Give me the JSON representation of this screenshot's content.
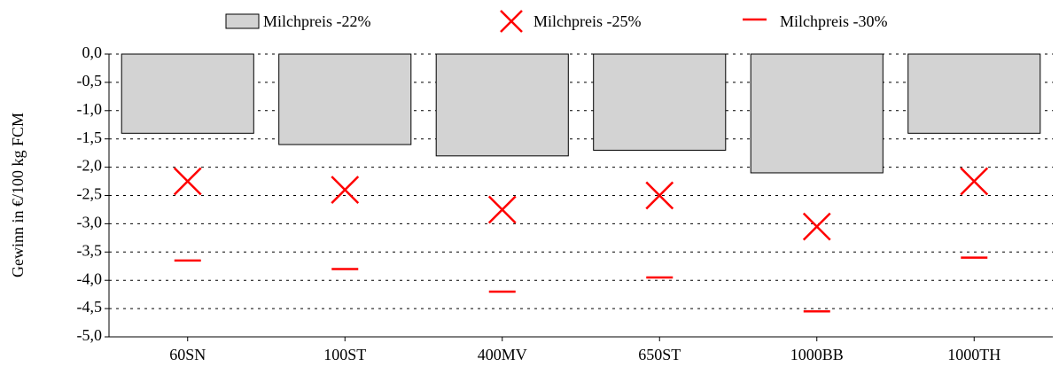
{
  "chart_data": {
    "type": "bar",
    "y_label": "Gewinn in €/100 kg FCM",
    "categories": [
      "60SN",
      "100ST",
      "400MV",
      "650ST",
      "1000BB",
      "1000TH"
    ],
    "series": [
      {
        "name": "Milchpreis -22%",
        "color": "#d3d3d3",
        "marker": "bar",
        "values": [
          -1.4,
          -1.6,
          -1.8,
          -1.7,
          -2.1,
          -1.4
        ]
      },
      {
        "name": "Milchpreis -25%",
        "color": "#ff0000",
        "marker": "x",
        "values": [
          -2.25,
          -2.4,
          -2.75,
          -2.5,
          -3.05,
          -2.25
        ]
      },
      {
        "name": "Milchpreis -30%",
        "color": "#ff0000",
        "marker": "dash",
        "values": [
          -3.65,
          -3.8,
          -4.2,
          -3.95,
          -4.55,
          -3.6
        ]
      }
    ],
    "ylim": [
      -5,
      0
    ],
    "yticks": [
      {
        "value": 0,
        "label": "0,0"
      },
      {
        "value": -0.5,
        "label": "-0,5"
      },
      {
        "value": -1,
        "label": "-1,0"
      },
      {
        "value": -1.5,
        "label": "-1,5"
      },
      {
        "value": -2,
        "label": "-2,0"
      },
      {
        "value": -2.5,
        "label": "-2,5"
      },
      {
        "value": -3,
        "label": "-3,0"
      },
      {
        "value": -3.5,
        "label": "-3,5"
      },
      {
        "value": -4,
        "label": "-4,0"
      },
      {
        "value": -4.5,
        "label": "-4,5"
      },
      {
        "value": -5,
        "label": "-5,0"
      }
    ],
    "grid": true
  }
}
